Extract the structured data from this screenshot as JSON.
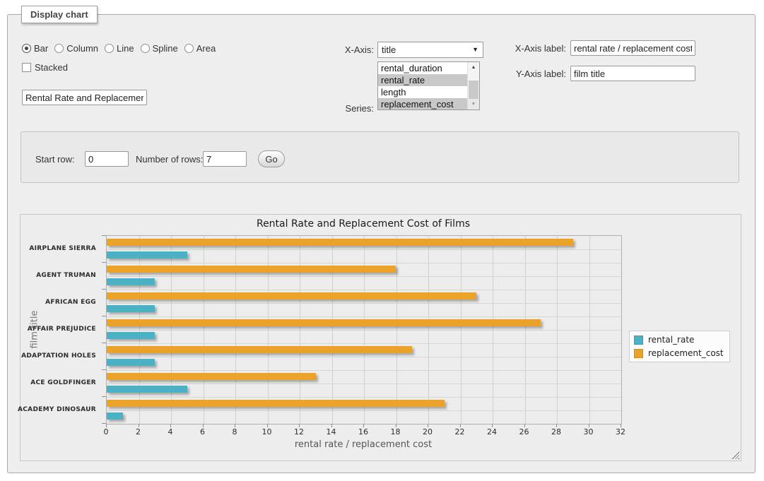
{
  "panel": {
    "legend": "Display chart"
  },
  "chart_type_options": [
    {
      "label": "Bar",
      "selected": true
    },
    {
      "label": "Column",
      "selected": false
    },
    {
      "label": "Line",
      "selected": false
    },
    {
      "label": "Spline",
      "selected": false
    },
    {
      "label": "Area",
      "selected": false
    }
  ],
  "stacked": {
    "label": "Stacked",
    "checked": false
  },
  "title_input": {
    "value": "Rental Rate and Replacement Cost of Films"
  },
  "x_axis": {
    "label": "X-Axis:",
    "selected": "title"
  },
  "series": {
    "label": "Series:",
    "options": [
      {
        "label": "rental_duration",
        "selected": false
      },
      {
        "label": "rental_rate",
        "selected": true
      },
      {
        "label": "length",
        "selected": false
      },
      {
        "label": "replacement_cost",
        "selected": true
      }
    ]
  },
  "x_axis_label": {
    "label": "X-Axis label:",
    "value": "rental rate / replacement cost"
  },
  "y_axis_label": {
    "label": "Y-Axis label:",
    "value": "film title"
  },
  "rows_form": {
    "start_row_label": "Start row:",
    "start_row_value": "0",
    "num_rows_label": "Number of rows:",
    "num_rows_value": "7",
    "go_label": "Go"
  },
  "icons": {
    "select_arrow": "▼",
    "scroll_up": "▲",
    "scroll_down": "▼"
  },
  "chart_data": {
    "type": "bar",
    "orientation": "horizontal",
    "title": "Rental Rate and Replacement Cost of Films",
    "xlabel": "rental rate / replacement cost",
    "ylabel": "film title",
    "categories": [
      "AIRPLANE SIERRA",
      "AGENT TRUMAN",
      "AFRICAN EGG",
      "AFFAIR PREJUDICE",
      "ADAPTATION HOLES",
      "ACE GOLDFINGER",
      "ACADEMY DINOSAUR"
    ],
    "series": [
      {
        "name": "rental_rate",
        "color": "#4bb2c5",
        "values": [
          4.99,
          2.99,
          2.99,
          2.99,
          2.99,
          4.99,
          0.99
        ]
      },
      {
        "name": "replacement_cost",
        "color": "#EAA228",
        "values": [
          28.99,
          17.99,
          22.99,
          26.99,
          18.99,
          12.99,
          20.99
        ]
      }
    ],
    "xlim": [
      0,
      32
    ],
    "xticks": [
      0,
      2,
      4,
      6,
      8,
      10,
      12,
      14,
      16,
      18,
      20,
      22,
      24,
      26,
      28,
      30,
      32
    ],
    "grid": true,
    "legend_position": "right"
  }
}
